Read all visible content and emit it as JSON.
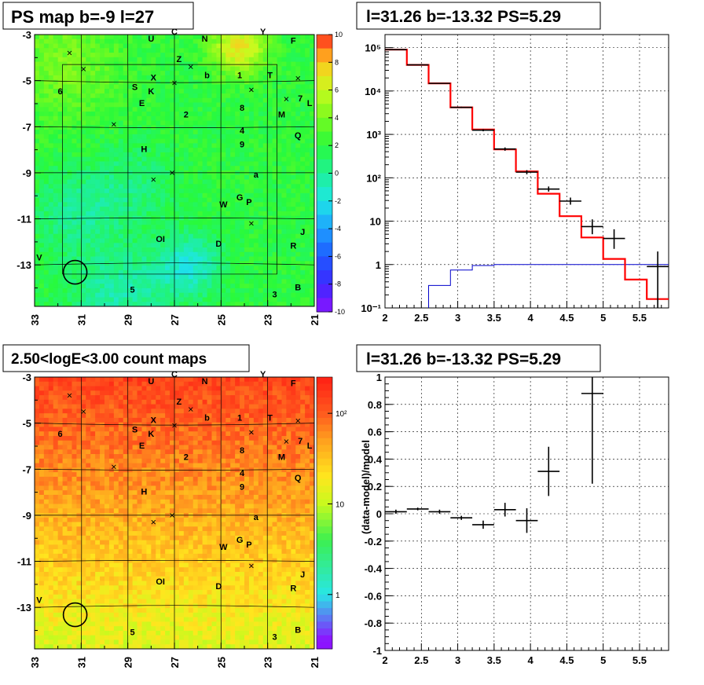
{
  "panels": {
    "ps_map": {
      "title": "PS map b=-9 l=27",
      "y_ticks": [
        "-3",
        "-5",
        "-7",
        "-9",
        "-11",
        "-13"
      ],
      "x_ticks": [
        "33",
        "31",
        "29",
        "27",
        "25",
        "23",
        "21"
      ],
      "colorbar_ticks": [
        "10",
        "8",
        "6",
        "4",
        "2",
        "0",
        "-2",
        "-4",
        "-6",
        "-8",
        "-10"
      ],
      "palette": [
        "#ff1a1a",
        "#ff4d1a",
        "#ff8c1a",
        "#ffc81a",
        "#f0ff1a",
        "#b4ff1a",
        "#5aff1a",
        "#1aff3c",
        "#1aff96",
        "#1affe6",
        "#1ac8ff",
        "#1a78ff",
        "#1a32ff",
        "#3c1aff",
        "#8c1aff"
      ]
    },
    "count_map": {
      "title": "2.50<logE<3.00 count maps",
      "y_ticks": [
        "-3",
        "-5",
        "-7",
        "-9",
        "-11",
        "-13"
      ],
      "x_ticks": [
        "33",
        "31",
        "29",
        "27",
        "25",
        "23",
        "21"
      ],
      "colorbar_ticks": [
        "10²",
        "10",
        "1"
      ]
    },
    "spectrum": {
      "title": "l=31.26 b=-13.32 PS=5.29"
    },
    "residual": {
      "title": "l=31.26 b=-13.32 PS=5.29"
    }
  },
  "source_labels": [
    {
      "t": "U",
      "l": 28,
      "b": -3.3
    },
    {
      "t": "C",
      "l": 27.0,
      "b": -3.0
    },
    {
      "t": "N",
      "l": 25.7,
      "b": -3.3
    },
    {
      "t": "Y",
      "l": 23.2,
      "b": -3.0
    },
    {
      "t": "F",
      "l": 21.9,
      "b": -3.4
    },
    {
      "t": "Z",
      "l": 26.8,
      "b": -4.2
    },
    {
      "t": "X",
      "l": 27.9,
      "b": -5.0
    },
    {
      "t": "b",
      "l": 25.6,
      "b": -4.9
    },
    {
      "t": "1",
      "l": 24.2,
      "b": -4.9
    },
    {
      "t": "T",
      "l": 22.9,
      "b": -4.9
    },
    {
      "t": "6",
      "l": 31.9,
      "b": -5.6
    },
    {
      "t": "S",
      "l": 28.7,
      "b": -5.4
    },
    {
      "t": "K",
      "l": 28.0,
      "b": -5.6
    },
    {
      "t": "E",
      "l": 28.4,
      "b": -6.1
    },
    {
      "t": "2",
      "l": 26.5,
      "b": -6.6
    },
    {
      "t": "8",
      "l": 24.1,
      "b": -6.3
    },
    {
      "t": "M",
      "l": 22.4,
      "b": -6.6
    },
    {
      "t": "7",
      "l": 21.6,
      "b": -5.9
    },
    {
      "t": "L",
      "l": 21.2,
      "b": -6.1
    },
    {
      "t": "4",
      "l": 24.1,
      "b": -7.3
    },
    {
      "t": "Q",
      "l": 21.7,
      "b": -7.5
    },
    {
      "t": "9",
      "l": 24.1,
      "b": -7.9
    },
    {
      "t": "H",
      "l": 28.3,
      "b": -8.1
    },
    {
      "t": "a",
      "l": 23.5,
      "b": -9.2
    },
    {
      "t": "G",
      "l": 24.2,
      "b": -10.2
    },
    {
      "t": "W",
      "l": 24.9,
      "b": -10.5
    },
    {
      "t": "P",
      "l": 23.8,
      "b": -10.4
    },
    {
      "t": "J",
      "l": 21.5,
      "b": -11.7
    },
    {
      "t": "OI",
      "l": 27.6,
      "b": -12.0
    },
    {
      "t": "D",
      "l": 25.1,
      "b": -12.2
    },
    {
      "t": "R",
      "l": 21.9,
      "b": -12.3
    },
    {
      "t": "V",
      "l": 32.8,
      "b": -12.8
    },
    {
      "t": "5",
      "l": 28.8,
      "b": -14.2
    },
    {
      "t": "3",
      "l": 22.7,
      "b": -14.4
    },
    {
      "t": "B",
      "l": 21.7,
      "b": -14.1
    }
  ],
  "cross_markers": [
    {
      "l": 31.5,
      "b": -3.8
    },
    {
      "l": 30.9,
      "b": -4.5
    },
    {
      "l": 26.3,
      "b": -4.4
    },
    {
      "l": 27.0,
      "b": -5.1
    },
    {
      "l": 23.7,
      "b": -5.4
    },
    {
      "l": 21.7,
      "b": -4.9
    },
    {
      "l": 22.2,
      "b": -5.8
    },
    {
      "l": 29.6,
      "b": -6.9
    },
    {
      "l": 27.1,
      "b": -9.0
    },
    {
      "l": 27.9,
      "b": -9.3
    },
    {
      "l": 23.7,
      "b": -11.2
    }
  ],
  "circle_marker": {
    "l": 31.26,
    "b": -13.32
  },
  "chart_data": [
    {
      "type": "heatmap",
      "title": "PS map b=-9 l=27",
      "x_range": [
        33,
        21
      ],
      "y_range": [
        -3,
        -14.8
      ],
      "z_range": [
        -10,
        10
      ],
      "description_values": "PS significance map; mostly 0 to 4 with cool spots near l=27 b=-12.5"
    },
    {
      "type": "heatmap",
      "title": "2.50<logE<3.00 count maps",
      "x_range": [
        33,
        21
      ],
      "y_range": [
        -3,
        -14.8
      ],
      "z_scale": "log",
      "z_range": [
        0.3,
        200
      ]
    },
    {
      "type": "bar",
      "title": "l=31.26 b=-13.32 PS=5.29",
      "x_range": [
        2,
        5.9
      ],
      "y_range": [
        0.1,
        200000
      ],
      "y_scale": "log",
      "grid": true,
      "model_total": {
        "edges": [
          2.0,
          2.3,
          2.6,
          2.9,
          3.2,
          3.5,
          3.8,
          4.1,
          4.4,
          4.7,
          5.0,
          5.3,
          5.6,
          5.9
        ],
        "values": [
          90000,
          40000,
          15000,
          4200,
          1300,
          450,
          140,
          43,
          13,
          4.2,
          1.35,
          0.45,
          0.16
        ]
      },
      "model_ps": {
        "edges": [
          2.6,
          2.9,
          3.2,
          3.5,
          5.9
        ],
        "values": [
          0.33,
          0.75,
          0.95,
          1.0
        ]
      },
      "data": [
        {
          "x": 2.15,
          "xerr": 0.15,
          "y": 90000,
          "ylo": 89000,
          "yhi": 91000
        },
        {
          "x": 2.45,
          "xerr": 0.15,
          "y": 40000,
          "ylo": 39400,
          "yhi": 40600
        },
        {
          "x": 2.75,
          "xerr": 0.15,
          "y": 15000,
          "ylo": 14700,
          "yhi": 15300
        },
        {
          "x": 3.05,
          "xerr": 0.15,
          "y": 4200,
          "ylo": 4050,
          "yhi": 4350
        },
        {
          "x": 3.35,
          "xerr": 0.15,
          "y": 1250,
          "ylo": 1180,
          "yhi": 1320
        },
        {
          "x": 3.65,
          "xerr": 0.15,
          "y": 460,
          "ylo": 420,
          "yhi": 500
        },
        {
          "x": 3.95,
          "xerr": 0.15,
          "y": 135,
          "ylo": 120,
          "yhi": 150
        },
        {
          "x": 4.25,
          "xerr": 0.15,
          "y": 55,
          "ylo": 48,
          "yhi": 63
        },
        {
          "x": 4.55,
          "xerr": 0.15,
          "y": 29,
          "ylo": 24,
          "yhi": 35
        },
        {
          "x": 4.85,
          "xerr": 0.15,
          "y": 7.5,
          "ylo": 5.0,
          "yhi": 11
        },
        {
          "x": 5.15,
          "xerr": 0.15,
          "y": 4.0,
          "ylo": 2.3,
          "yhi": 6.5
        },
        {
          "x": 5.75,
          "xerr": 0.15,
          "y": 0.9,
          "ylo": 0.1,
          "yhi": 2.0
        }
      ]
    },
    {
      "type": "scatter",
      "title": "l=31.26 b=-13.32 PS=5.29",
      "ylabel": "(data-model)/model",
      "x_range": [
        2,
        5.9
      ],
      "y_range": [
        -1,
        1
      ],
      "grid": true,
      "data": [
        {
          "x": 2.15,
          "xerr": 0.15,
          "y": 0.015,
          "ylo": 0.0,
          "yhi": 0.03
        },
        {
          "x": 2.45,
          "xerr": 0.15,
          "y": 0.035,
          "ylo": 0.025,
          "yhi": 0.045
        },
        {
          "x": 2.75,
          "xerr": 0.15,
          "y": 0.015,
          "ylo": 0.0,
          "yhi": 0.03
        },
        {
          "x": 3.05,
          "xerr": 0.15,
          "y": -0.03,
          "ylo": -0.045,
          "yhi": -0.015
        },
        {
          "x": 3.35,
          "xerr": 0.15,
          "y": -0.08,
          "ylo": -0.11,
          "yhi": -0.05
        },
        {
          "x": 3.65,
          "xerr": 0.15,
          "y": 0.03,
          "ylo": -0.02,
          "yhi": 0.08
        },
        {
          "x": 3.95,
          "xerr": 0.15,
          "y": -0.05,
          "ylo": -0.14,
          "yhi": 0.04
        },
        {
          "x": 4.25,
          "xerr": 0.15,
          "y": 0.31,
          "ylo": 0.13,
          "yhi": 0.49
        },
        {
          "x": 4.85,
          "xerr": 0.15,
          "y": 0.88,
          "ylo": 0.22,
          "yhi": 1.0
        }
      ]
    }
  ]
}
